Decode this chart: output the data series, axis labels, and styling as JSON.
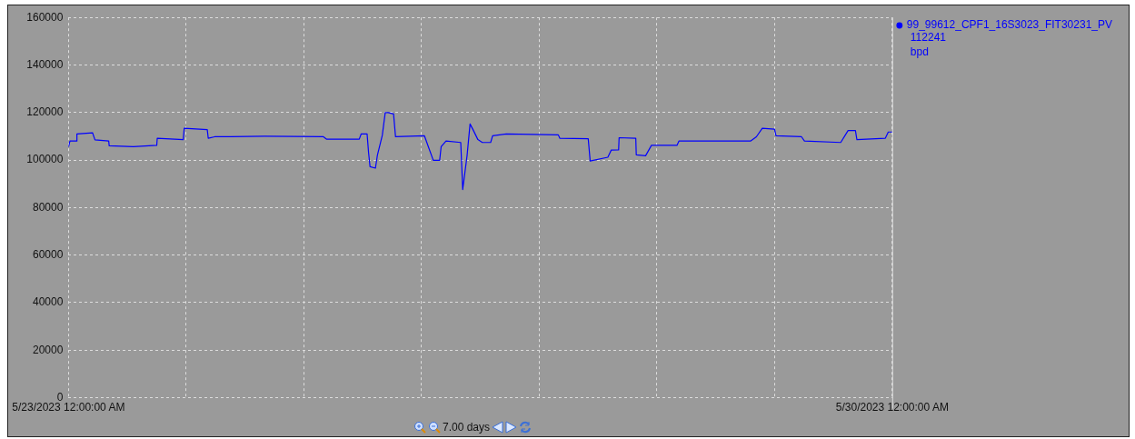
{
  "chart_data": {
    "type": "line",
    "xlim": [
      "2023-05-23T00:00",
      "2023-05-30T00:00"
    ],
    "xticks": [
      {
        "value": "2023-05-23T00:00",
        "label": "5/23/2023 12:00:00 AM"
      },
      {
        "value": "2023-05-24T00:00",
        "label": null
      },
      {
        "value": "2023-05-25T00:00",
        "label": null
      },
      {
        "value": "2023-05-26T00:00",
        "label": null
      },
      {
        "value": "2023-05-27T00:00",
        "label": null
      },
      {
        "value": "2023-05-28T00:00",
        "label": null
      },
      {
        "value": "2023-05-29T00:00",
        "label": null
      },
      {
        "value": "2023-05-30T00:00",
        "label": "5/30/2023 12:00:00 AM"
      }
    ],
    "ylim": [
      0,
      160000
    ],
    "yticks": [
      0,
      20000,
      40000,
      60000,
      80000,
      100000,
      120000,
      140000,
      160000
    ],
    "grid": true,
    "legend": "top right",
    "marker": "none",
    "line_style": "solid",
    "annotations": [
      "112241",
      "bpd",
      "7.00 days"
    ],
    "series": [
      {
        "name": "99_99612_CPF1_16S3023_FIT30231_PV",
        "color": "#0000ff",
        "x": [
          "2023-05-23T00:00",
          "2023-05-23T00:18",
          "2023-05-23T01:40",
          "2023-05-23T01:43",
          "2023-05-23T04:54",
          "2023-05-23T05:24",
          "2023-05-23T08:12",
          "2023-05-23T08:18",
          "2023-05-23T13:12",
          "2023-05-23T18:00",
          "2023-05-23T18:06",
          "2023-05-23T23:24",
          "2023-05-23T23:36",
          "2023-05-24T04:18",
          "2023-05-24T04:30",
          "2023-05-24T05:48",
          "2023-05-24T16:00",
          "2023-05-25T04:00",
          "2023-05-25T04:36",
          "2023-05-25T11:18",
          "2023-05-25T11:42",
          "2023-05-25T12:54",
          "2023-05-25T13:12",
          "2023-05-25T13:30",
          "2023-05-25T14:36",
          "2023-05-25T15:00",
          "2023-05-25T16:00",
          "2023-05-25T16:36",
          "2023-05-25T17:12",
          "2023-05-25T18:18",
          "2023-05-25T18:42",
          "2023-05-26T00:36",
          "2023-05-26T01:30",
          "2023-05-26T02:24",
          "2023-05-26T03:42",
          "2023-05-26T04:00",
          "2023-05-26T05:00",
          "2023-05-26T08:00",
          "2023-05-26T08:24",
          "2023-05-26T09:18",
          "2023-05-26T09:54",
          "2023-05-26T10:30",
          "2023-05-26T11:30",
          "2023-05-26T12:24",
          "2023-05-26T14:06",
          "2023-05-26T14:30",
          "2023-05-26T17:18",
          "2023-05-27T03:54",
          "2023-05-27T04:12",
          "2023-05-27T10:00",
          "2023-05-27T10:24",
          "2023-05-27T14:00",
          "2023-05-27T14:42",
          "2023-05-27T16:12",
          "2023-05-27T16:18",
          "2023-05-27T19:42",
          "2023-05-27T19:48",
          "2023-05-27T21:42",
          "2023-05-27T22:54",
          "2023-05-28T04:06",
          "2023-05-28T04:30",
          "2023-05-28T19:06",
          "2023-05-28T20:18",
          "2023-05-28T21:30",
          "2023-05-29T00:00",
          "2023-05-29T00:18",
          "2023-05-29T05:30",
          "2023-05-29T06:06",
          "2023-05-29T13:30",
          "2023-05-29T14:24",
          "2023-05-29T15:00",
          "2023-05-29T16:30",
          "2023-05-29T16:48",
          "2023-05-29T22:36",
          "2023-05-29T23:12",
          "2023-05-30T00:00"
        ],
        "values": [
          105500,
          108000,
          108000,
          111000,
          111500,
          108500,
          108000,
          106000,
          105600,
          106200,
          109200,
          108600,
          113400,
          112800,
          109200,
          109800,
          110000,
          109800,
          108800,
          108800,
          111000,
          111000,
          103200,
          97200,
          96600,
          102000,
          110400,
          120000,
          120000,
          119400,
          109800,
          110200,
          105000,
          99900,
          99900,
          105600,
          108000,
          107400,
          87600,
          102000,
          115200,
          112800,
          108600,
          107400,
          107400,
          110200,
          111000,
          110600,
          109200,
          109000,
          99600,
          101200,
          104200,
          104300,
          109400,
          109200,
          102200,
          101800,
          106200,
          106200,
          108000,
          108000,
          109800,
          113400,
          113000,
          110200,
          109800,
          108000,
          107400,
          110400,
          112400,
          112400,
          108600,
          109200,
          111800,
          111800
        ]
      }
    ]
  }
}
